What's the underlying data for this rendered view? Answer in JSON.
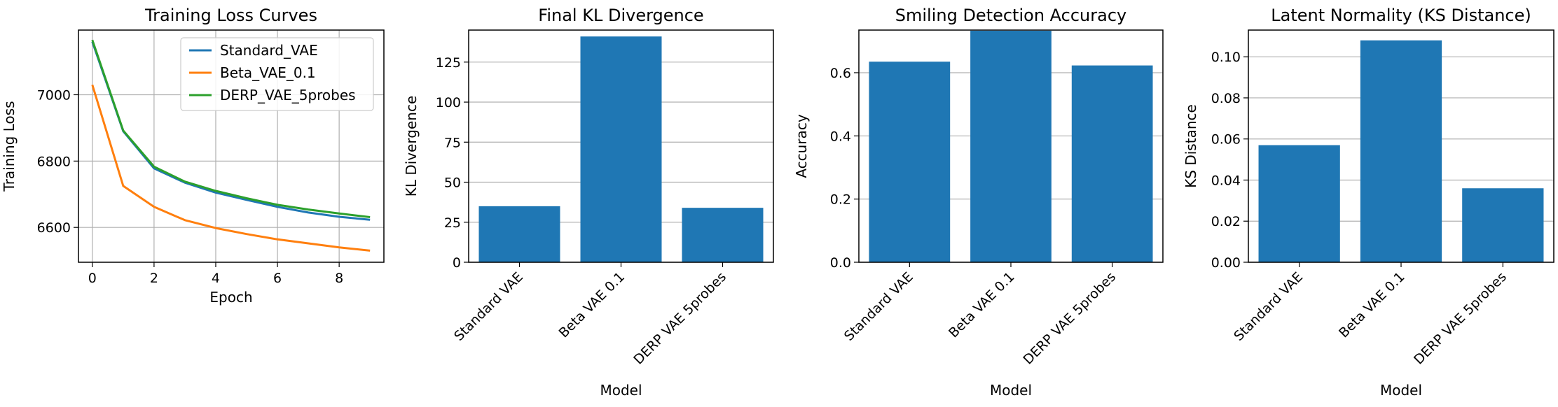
{
  "chart_data": [
    {
      "type": "line",
      "title": "Training Loss Curves",
      "xlabel": "Epoch",
      "ylabel": "Training Loss",
      "x": [
        0,
        1,
        2,
        3,
        4,
        5,
        6,
        7,
        8,
        9
      ],
      "xlim": [
        -0.45,
        9.45
      ],
      "ylim": [
        6495,
        7195
      ],
      "xticks": [
        0,
        2,
        4,
        6,
        8
      ],
      "yticks": [
        6600,
        6800,
        7000
      ],
      "grid": true,
      "legend": "top-right",
      "series": [
        {
          "name": "Standard_VAE",
          "color": "#1f77b4",
          "values": [
            7160,
            6890,
            6778,
            6735,
            6705,
            6683,
            6662,
            6645,
            6632,
            6623
          ]
        },
        {
          "name": "Beta_VAE_0.1",
          "color": "#ff7f0e",
          "values": [
            7030,
            6725,
            6662,
            6622,
            6598,
            6580,
            6564,
            6552,
            6540,
            6530
          ]
        },
        {
          "name": "DERP_VAE_5probes",
          "color": "#2ca02c",
          "values": [
            7165,
            6892,
            6783,
            6738,
            6710,
            6688,
            6668,
            6654,
            6642,
            6631
          ]
        }
      ]
    },
    {
      "type": "bar",
      "title": "Final KL Divergence",
      "xlabel": "Model",
      "ylabel": "KL Divergence",
      "categories": [
        "Standard VAE",
        "Beta VAE 0.1",
        "DERP VAE 5probes"
      ],
      "values": [
        35,
        141,
        34
      ],
      "ylim": [
        0,
        145
      ],
      "yticks": [
        0,
        25,
        50,
        75,
        100,
        125
      ],
      "grid": true,
      "color": "#1f77b4"
    },
    {
      "type": "bar",
      "title": "Smiling Detection Accuracy",
      "xlabel": "Model",
      "ylabel": "Accuracy",
      "categories": [
        "Standard VAE",
        "Beta VAE 0.1",
        "DERP VAE 5probes"
      ],
      "values": [
        0.635,
        0.733,
        0.623
      ],
      "ylim": [
        0,
        0.735
      ],
      "yticks": [
        0.0,
        0.2,
        0.4,
        0.6
      ],
      "ytick_decimals": 1,
      "grid": true,
      "color": "#1f77b4"
    },
    {
      "type": "bar",
      "title": "Latent Normality (KS Distance)",
      "xlabel": "Model",
      "ylabel": "KS Distance",
      "categories": [
        "Standard VAE",
        "Beta VAE 0.1",
        "DERP VAE 5probes"
      ],
      "values": [
        0.057,
        0.108,
        0.036
      ],
      "ylim": [
        0,
        0.113
      ],
      "yticks": [
        0.0,
        0.02,
        0.04,
        0.06,
        0.08,
        0.1
      ],
      "ytick_decimals": 2,
      "grid": true,
      "color": "#1f77b4"
    }
  ]
}
